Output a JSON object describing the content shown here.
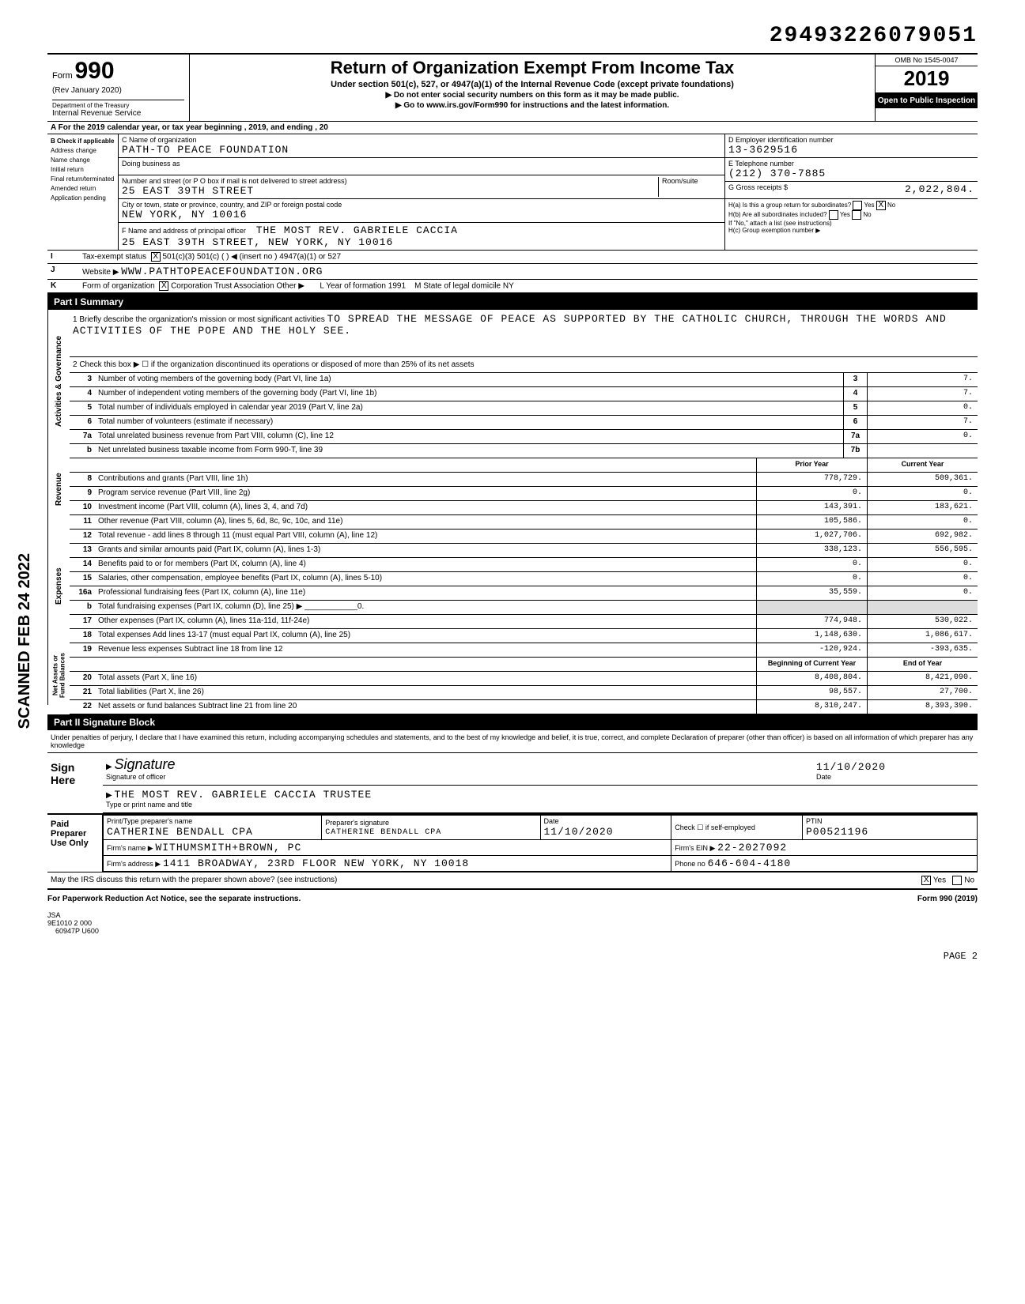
{
  "top_id": "29493226079051",
  "scanned": "SCANNED FEB 24 2022",
  "header": {
    "form": "Form",
    "form_no": "990",
    "rev": "(Rev January 2020)",
    "dept": "Department of the Treasury",
    "irs": "Internal Revenue Service",
    "title": "Return of Organization Exempt From Income Tax",
    "sub": "Under section 501(c), 527, or 4947(a)(1) of the Internal Revenue Code (except private foundations)",
    "sub2": "▶ Do not enter social security numbers on this form as it may be made public.",
    "sub3": "▶ Go to www.irs.gov/Form990 for instructions and the latest information.",
    "omb": "OMB No 1545-0047",
    "year": "2019",
    "open": "Open to Public Inspection"
  },
  "lineA": "A  For the 2019 calendar year, or tax year beginning                                                    , 2019, and ending                                          , 20",
  "boxB": {
    "title": "B  Check if applicable",
    "items": [
      "Address change",
      "Name change",
      "Initial return",
      "Final return/terminated",
      "Amended return",
      "Application pending"
    ]
  },
  "boxC": {
    "name_lbl": "C Name of organization",
    "name": "PATH-TO PEACE FOUNDATION",
    "dba_lbl": "Doing business as",
    "addr_lbl": "Number and street (or P O  box if mail is not delivered to street address)",
    "room_lbl": "Room/suite",
    "addr": "25 EAST 39TH STREET",
    "city_lbl": "City or town, state or province, country, and ZIP or foreign postal code",
    "city": "NEW YORK, NY 10016",
    "officer_lbl": "F Name and address of principal officer",
    "officer": "THE MOST REV. GABRIELE CACCIA",
    "officer_addr": "25 EAST 39TH STREET, NEW YORK, NY 10016"
  },
  "boxD": {
    "lbl": "D Employer identification number",
    "val": "13-3629516"
  },
  "boxE": {
    "lbl": "E Telephone number",
    "val": "(212) 370-7885"
  },
  "boxG": {
    "lbl": "G Gross receipts $",
    "val": "2,022,804."
  },
  "boxH": {
    "ha": "H(a) Is this a group return for subordinates?",
    "ha_yes": "Yes",
    "ha_no": "No",
    "ha_no_x": "X",
    "hb": "H(b) Are all subordinates included?",
    "hb_yes": "Yes",
    "hb_no": "No",
    "note": "If \"No,\" attach a list (see instructions)",
    "hc": "H(c) Group exemption number ▶"
  },
  "lineI": {
    "lbl": "I",
    "text": "Tax-exempt status",
    "x501c3": "X",
    "opts": "501(c)(3)        501(c) (        ) ◀  (insert no )        4947(a)(1) or        527"
  },
  "lineJ": {
    "lbl": "J",
    "text": "Website ▶",
    "val": "WWW.PATHTOPEACEFOUNDATION.ORG"
  },
  "lineK": {
    "lbl": "K",
    "text": "Form of organization",
    "x": "X",
    "opts": "Corporation       Trust       Association       Other ▶",
    "L": "L Year of formation  1991",
    "M": "M State of legal domicile        NY"
  },
  "partI": "Part I     Summary",
  "mission": {
    "lead": "1   Briefly describe the organization's mission or most significant activities",
    "text": "TO SPREAD THE MESSAGE OF PEACE AS SUPPORTED BY THE CATHOLIC CHURCH, THROUGH THE WORDS AND ACTIVITIES OF THE POPE AND THE HOLY SEE."
  },
  "line2": "2   Check this box ▶  ☐  if the organization discontinued its operations or disposed of more than 25% of its net assets",
  "lines_single": [
    {
      "n": "3",
      "t": "Number of voting members of the governing body (Part VI, line 1a)",
      "box": "3",
      "v": "7."
    },
    {
      "n": "4",
      "t": "Number of independent voting members of the governing body (Part VI, line 1b)",
      "box": "4",
      "v": "7."
    },
    {
      "n": "5",
      "t": "Total number of individuals employed in calendar year 2019 (Part V, line 2a)",
      "box": "5",
      "v": "0."
    },
    {
      "n": "6",
      "t": "Total number of volunteers (estimate if necessary)",
      "box": "6",
      "v": "7."
    },
    {
      "n": "7a",
      "t": "Total unrelated business revenue from Part VIII, column (C), line 12",
      "box": "7a",
      "v": "0."
    },
    {
      "n": "b",
      "t": "Net unrelated business taxable income from Form 990-T, line 39",
      "box": "7b",
      "v": ""
    }
  ],
  "col_heads": {
    "prior": "Prior Year",
    "current": "Current Year"
  },
  "sections": {
    "gov": "Activities & Governance",
    "rev": "Revenue",
    "exp": "Expenses",
    "net": "Net Assets or Fund Balances"
  },
  "revenue": [
    {
      "n": "8",
      "t": "Contributions and grants (Part VIII, line 1h)",
      "p": "778,729.",
      "c": "509,361."
    },
    {
      "n": "9",
      "t": "Program service revenue (Part VIII, line 2g)",
      "p": "0.",
      "c": "0."
    },
    {
      "n": "10",
      "t": "Investment income (Part VIII, column (A), lines 3, 4, and 7d)",
      "p": "143,391.",
      "c": "183,621."
    },
    {
      "n": "11",
      "t": "Other revenue (Part VIII, column (A), lines 5, 6d, 8c, 9c, 10c, and 11e)",
      "p": "105,586.",
      "c": "0."
    },
    {
      "n": "12",
      "t": "Total revenue - add lines 8 through 11 (must equal Part VIII, column (A), line 12)",
      "p": "1,027,706.",
      "c": "692,982."
    }
  ],
  "expenses": [
    {
      "n": "13",
      "t": "Grants and similar amounts paid (Part IX, column (A), lines 1-3)",
      "p": "338,123.",
      "c": "556,595."
    },
    {
      "n": "14",
      "t": "Benefits paid to or for members (Part IX, column (A), line 4)",
      "p": "0.",
      "c": "0."
    },
    {
      "n": "15",
      "t": "Salaries, other compensation, employee benefits (Part IX, column (A), lines 5-10)",
      "p": "0.",
      "c": "0."
    },
    {
      "n": "16a",
      "t": "Professional fundraising fees (Part IX, column (A), line 11e)",
      "p": "35,559.",
      "c": "0."
    },
    {
      "n": "b",
      "t": "Total fundraising expenses (Part IX, column (D), line 25) ▶ ____________0.",
      "p": "",
      "c": "",
      "shaded": true
    },
    {
      "n": "17",
      "t": "Other expenses (Part IX, column (A), lines 11a-11d, 11f-24e)",
      "p": "774,948.",
      "c": "530,022."
    },
    {
      "n": "18",
      "t": "Total expenses  Add lines 13-17 (must equal Part IX, column (A), line 25)",
      "p": "1,148,630.",
      "c": "1,086,617."
    },
    {
      "n": "19",
      "t": "Revenue less expenses  Subtract line 18 from line 12",
      "p": "-120,924.",
      "c": "-393,635."
    }
  ],
  "net_heads": {
    "begin": "Beginning of Current Year",
    "end": "End of Year"
  },
  "net": [
    {
      "n": "20",
      "t": "Total assets (Part X, line 16)",
      "p": "8,408,804.",
      "c": "8,421,090."
    },
    {
      "n": "21",
      "t": "Total liabilities (Part X, line 26)",
      "p": "98,557.",
      "c": "27,700."
    },
    {
      "n": "22",
      "t": "Net assets or fund balances  Subtract line 21 from line 20",
      "p": "8,310,247.",
      "c": "8,393,390."
    }
  ],
  "partII": "Part II    Signature Block",
  "perjury": "Under penalties of perjury, I declare that I have examined this return, including accompanying schedules and statements, and to the best of my knowledge and belief, it is true, correct, and complete  Declaration of preparer (other than officer) is based on all information of which preparer has any knowledge",
  "sign": {
    "here": "Sign Here",
    "sig_lbl": "Signature of officer",
    "date": "11/10/2020",
    "date_lbl": "Date",
    "name": "THE MOST REV. GABRIELE CACCIA          TRUSTEE",
    "name_lbl": "Type or print name and title"
  },
  "paid": {
    "title": "Paid Preparer Use Only",
    "prep_name_lbl": "Print/Type preparer's name",
    "prep_name": "CATHERINE  BENDALL  CPA",
    "prep_sig_lbl": "Preparer's signature",
    "prep_sig": "CATHERINE  BENDALL  CPA",
    "date_lbl": "Date",
    "date": "11/10/2020",
    "check_lbl": "Check ☐ if self-employed",
    "ptin_lbl": "PTIN",
    "ptin": "P00521196",
    "firm_lbl": "Firm's name ▶",
    "firm": "WITHUMSMITH+BROWN, PC",
    "ein_lbl": "Firm's EIN ▶",
    "ein": "22-2027092",
    "addr_lbl": "Firm's address ▶",
    "addr": "1411 BROADWAY, 23RD FLOOR NEW YORK, NY 10018",
    "phone_lbl": "Phone no",
    "phone": "646-604-4180"
  },
  "may_irs": "May the IRS discuss this return with the preparer shown above? (see instructions)",
  "may_yes_x": "X",
  "footer_left": "For Paperwork Reduction Act Notice, see the separate instructions.",
  "footer_right": "Form 990 (2019)",
  "jsa": "JSA",
  "jsa2": "9E1010 2 000",
  "jsa3": "60947P U600",
  "page": "PAGE 2"
}
